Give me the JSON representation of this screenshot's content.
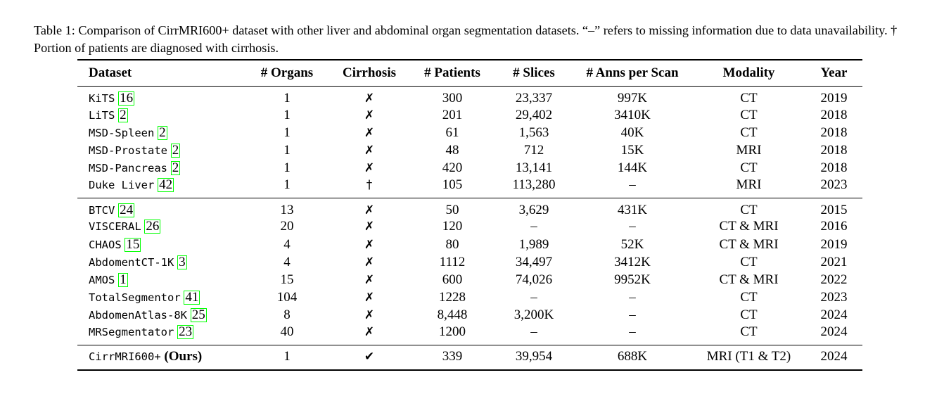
{
  "caption": {
    "text": "Table 1: Comparison of CirrMRI600+ dataset with other liver and abdominal organ segmentation datasets. “–” refers to missing information due to data unavailability. † Portion of patients are diagnosed with cirrhosis."
  },
  "table": {
    "headers": [
      "Dataset",
      "# Organs",
      "Cirrhosis",
      "# Patients",
      "# Slices",
      "# Anns per Scan",
      "Modality",
      "Year"
    ],
    "group1": [
      {
        "name": "KiTS",
        "cite": "16",
        "organs": "1",
        "cirrhosis": "✗",
        "patients": "300",
        "slices": "23,337",
        "anns": "997K",
        "modality": "CT",
        "year": "2019"
      },
      {
        "name": "LiTS",
        "cite": "2",
        "organs": "1",
        "cirrhosis": "✗",
        "patients": "201",
        "slices": "29,402",
        "anns": "3410K",
        "modality": "CT",
        "year": "2018"
      },
      {
        "name": "MSD-Spleen",
        "cite": "2",
        "organs": "1",
        "cirrhosis": "✗",
        "patients": "61",
        "slices": "1,563",
        "anns": "40K",
        "modality": "CT",
        "year": "2018"
      },
      {
        "name": "MSD-Prostate",
        "cite": "2",
        "organs": "1",
        "cirrhosis": "✗",
        "patients": "48",
        "slices": "712",
        "anns": "15K",
        "modality": "MRI",
        "year": "2018"
      },
      {
        "name": "MSD-Pancreas",
        "cite": "2",
        "organs": "1",
        "cirrhosis": "✗",
        "patients": "420",
        "slices": "13,141",
        "anns": "144K",
        "modality": "CT",
        "year": "2018"
      },
      {
        "name": "Duke Liver",
        "cite": "42",
        "organs": "1",
        "cirrhosis": "†",
        "patients": "105",
        "slices": "113,280",
        "anns": "–",
        "modality": "MRI",
        "year": "2023"
      }
    ],
    "group2": [
      {
        "name": "BTCV",
        "cite": "24",
        "organs": "13",
        "cirrhosis": "✗",
        "patients": "50",
        "slices": "3,629",
        "anns": "431K",
        "modality": "CT",
        "year": "2015"
      },
      {
        "name": "VISCERAL",
        "cite": "26",
        "organs": "20",
        "cirrhosis": "✗",
        "patients": "120",
        "slices": "–",
        "anns": "–",
        "modality": "CT & MRI",
        "year": "2016"
      },
      {
        "name": "CHAOS",
        "cite": "15",
        "organs": "4",
        "cirrhosis": "✗",
        "patients": "80",
        "slices": "1,989",
        "anns": "52K",
        "modality": "CT & MRI",
        "year": "2019"
      },
      {
        "name": "AbdomentCT-1K",
        "cite": "3",
        "organs": "4",
        "cirrhosis": "✗",
        "patients": "1112",
        "slices": "34,497",
        "anns": "3412K",
        "modality": "CT",
        "year": "2021"
      },
      {
        "name": "AMOS",
        "cite": "1",
        "organs": "15",
        "cirrhosis": "✗",
        "patients": "600",
        "slices": "74,026",
        "anns": "9952K",
        "modality": "CT & MRI",
        "year": "2022"
      },
      {
        "name": "TotalSegmentor",
        "cite": "41",
        "organs": "104",
        "cirrhosis": "✗",
        "patients": "1228",
        "slices": "–",
        "anns": "–",
        "modality": "CT",
        "year": "2023"
      },
      {
        "name": "AbdomenAtlas-8K",
        "cite": "25",
        "organs": "8",
        "cirrhosis": "✗",
        "patients": "8,448",
        "slices": "3,200K",
        "anns": "–",
        "modality": "CT",
        "year": "2024"
      },
      {
        "name": "MRSegmentator",
        "cite": "23",
        "organs": "40",
        "cirrhosis": "✗",
        "patients": "1200",
        "slices": "–",
        "anns": "–",
        "modality": "CT",
        "year": "2024"
      }
    ],
    "ours": {
      "name": "CirrMRI600+",
      "suffix": "(Ours)",
      "organs": "1",
      "cirrhosis": "✔",
      "patients": "339",
      "slices": "39,954",
      "anns": "688K",
      "modality": "MRI (T1 & T2)",
      "year": "2024"
    }
  },
  "colors": {
    "citation_box": "#00ff00"
  }
}
